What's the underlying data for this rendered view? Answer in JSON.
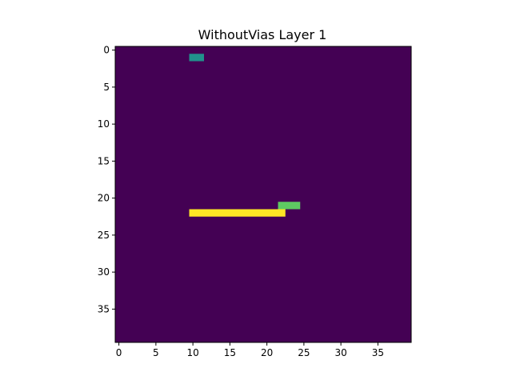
{
  "chart_data": {
    "type": "heatmap",
    "title": "WithoutVias Layer 1",
    "xlabel": "",
    "ylabel": "",
    "grid_size": [
      40,
      40
    ],
    "xlim": [
      -0.5,
      39.5
    ],
    "ylim": [
      39.5,
      -0.5
    ],
    "x_ticks": [
      0,
      5,
      10,
      15,
      20,
      25,
      30,
      35
    ],
    "y_ticks": [
      0,
      5,
      10,
      15,
      20,
      25,
      30,
      35
    ],
    "colormap": "viridis",
    "background_value": 0,
    "background_color": "#440154",
    "regions": [
      {
        "rows": [
          1,
          1
        ],
        "cols": [
          10,
          11
        ],
        "color": "#21918c"
      },
      {
        "rows": [
          21,
          21
        ],
        "cols": [
          22,
          24
        ],
        "color": "#5ec962"
      },
      {
        "rows": [
          22,
          22
        ],
        "cols": [
          10,
          22
        ],
        "color": "#fde725"
      }
    ]
  }
}
